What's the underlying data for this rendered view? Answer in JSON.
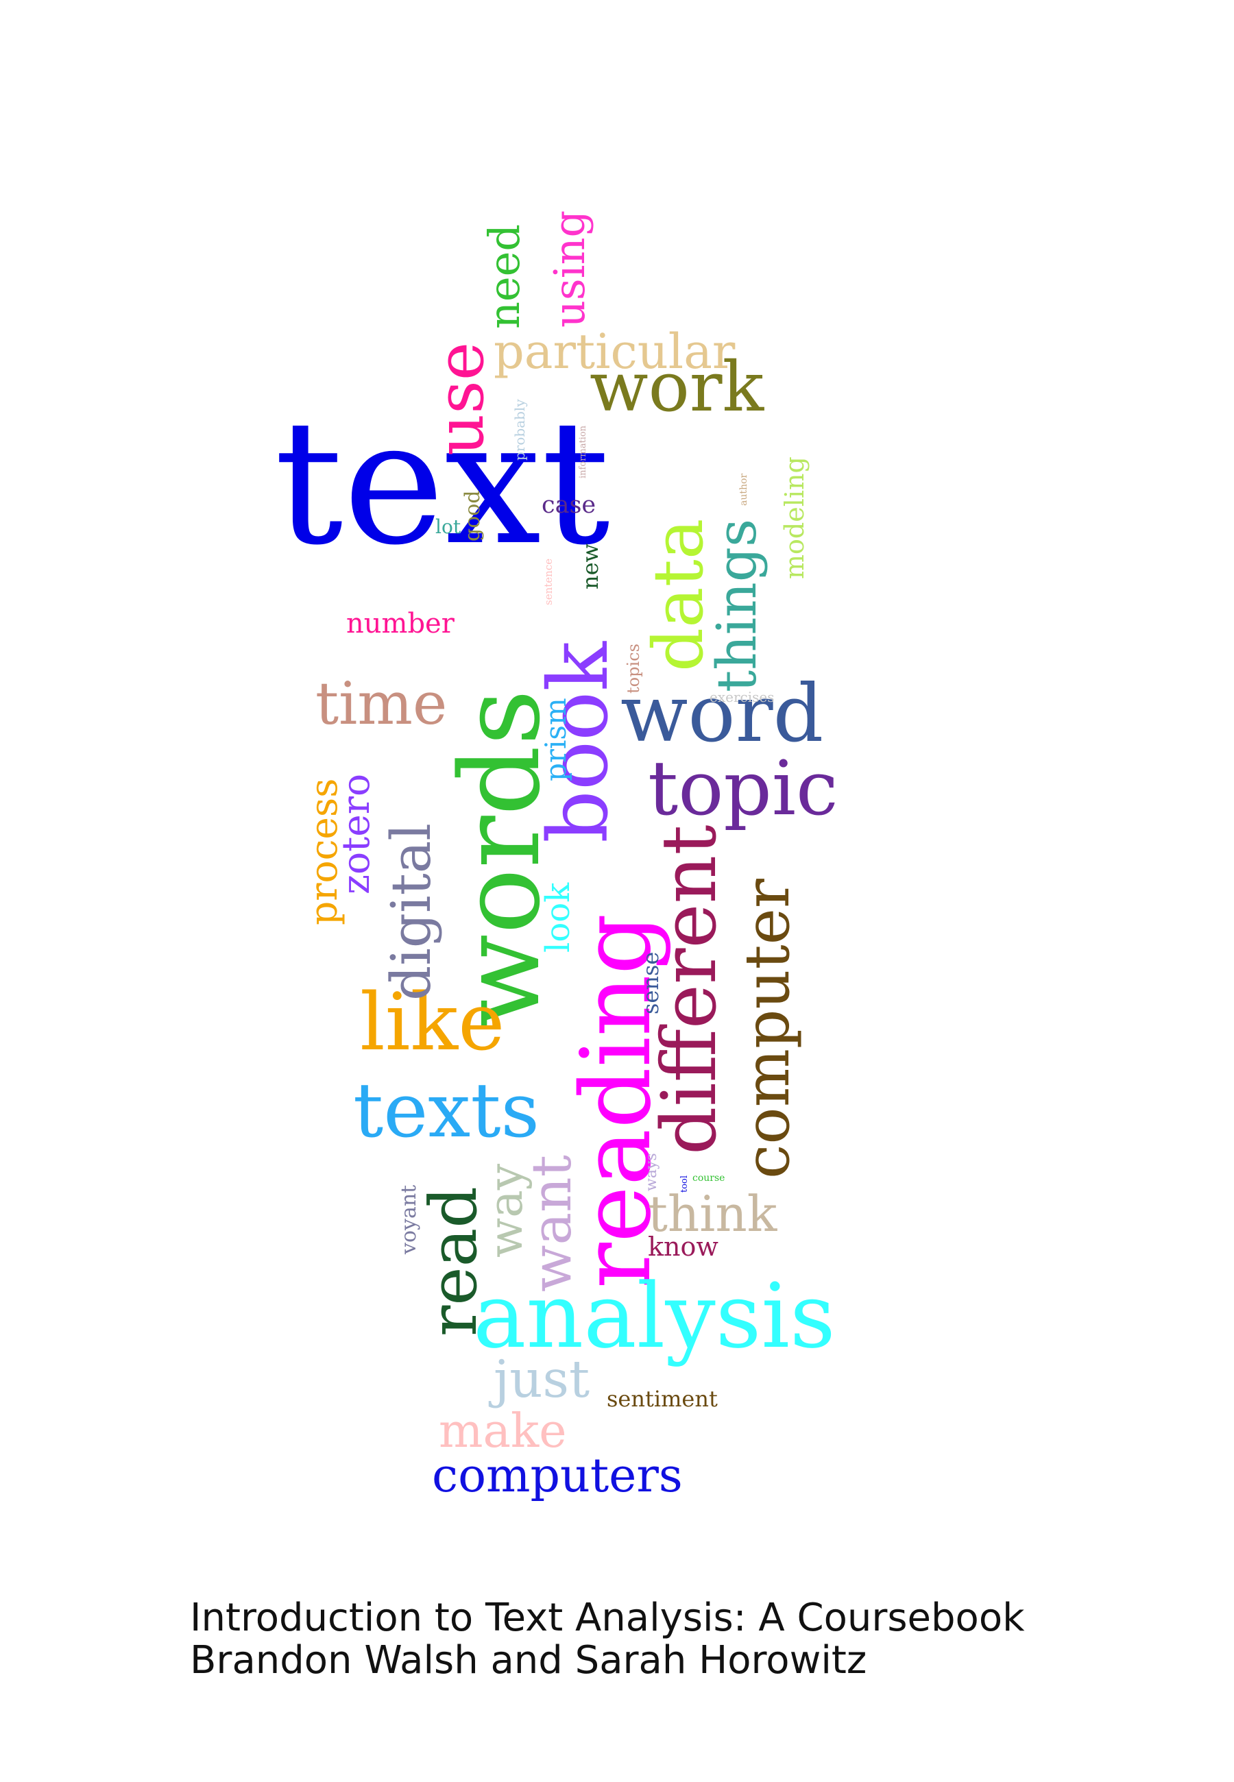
{
  "cover": {
    "title": "Introduction to Text Analysis: A Coursebook",
    "authors": "Brandon Walsh and Sarah Horowitz"
  },
  "cloud": {
    "words": [
      {
        "text": "text",
        "color": "#0000e8"
      },
      {
        "text": "words",
        "color": "#33c133"
      },
      {
        "text": "reading",
        "color": "#ff00ff"
      },
      {
        "text": "book",
        "color": "#8b3dff"
      },
      {
        "text": "analysis",
        "color": "#33ffff"
      },
      {
        "text": "data",
        "color": "#b5f533"
      },
      {
        "text": "use",
        "color": "#ff1493"
      },
      {
        "text": "work",
        "color": "#7a7a1e"
      },
      {
        "text": "word",
        "color": "#3a5a9a"
      },
      {
        "text": "topic",
        "color": "#6a2a9a"
      },
      {
        "text": "different",
        "color": "#9a1a5a"
      },
      {
        "text": "computer",
        "color": "#6a4a10"
      },
      {
        "text": "like",
        "color": "#f5a500"
      },
      {
        "text": "texts",
        "color": "#2aaaf5"
      },
      {
        "text": "digital",
        "color": "#7a7aa0"
      },
      {
        "text": "read",
        "color": "#1a5a2a"
      },
      {
        "text": "things",
        "color": "#3aa89a"
      },
      {
        "text": "particular",
        "color": "#e5c890"
      },
      {
        "text": "time",
        "color": "#c89080"
      },
      {
        "text": "need",
        "color": "#33c133"
      },
      {
        "text": "using",
        "color": "#ff33cc"
      },
      {
        "text": "want",
        "color": "#c8a8d8"
      },
      {
        "text": "way",
        "color": "#b8c8b0"
      },
      {
        "text": "think",
        "color": "#c8b8a0"
      },
      {
        "text": "just",
        "color": "#b8d0e0"
      },
      {
        "text": "make",
        "color": "#ffc0c0"
      },
      {
        "text": "computers",
        "color": "#1010e0"
      },
      {
        "text": "prism",
        "color": "#2ab0f5"
      },
      {
        "text": "look",
        "color": "#33ffff"
      },
      {
        "text": "zotero",
        "color": "#8a3dff"
      },
      {
        "text": "process",
        "color": "#f5a500"
      },
      {
        "text": "modeling",
        "color": "#b8e860"
      },
      {
        "text": "number",
        "color": "#ff1493"
      },
      {
        "text": "case",
        "color": "#5a2a8a"
      },
      {
        "text": "new",
        "color": "#1a5a2a"
      },
      {
        "text": "good",
        "color": "#8a8a40"
      },
      {
        "text": "lot",
        "color": "#3aa89a"
      },
      {
        "text": "sense",
        "color": "#3a5a9a"
      },
      {
        "text": "know",
        "color": "#9a1a5a"
      },
      {
        "text": "sentiment",
        "color": "#6a4a10"
      },
      {
        "text": "voyant",
        "color": "#7a7aa0"
      },
      {
        "text": "topics",
        "color": "#c89080"
      },
      {
        "text": "exercises",
        "color": "#c8c8c8"
      },
      {
        "text": "probably",
        "color": "#b8d0e0"
      },
      {
        "text": "information",
        "color": "#c8a8a8"
      },
      {
        "text": "author",
        "color": "#c8a880"
      },
      {
        "text": "sentence",
        "color": "#ffc0c0"
      },
      {
        "text": "ways",
        "color": "#b8a8d8"
      },
      {
        "text": "tool",
        "color": "#1010e0"
      },
      {
        "text": "course",
        "color": "#33c133"
      }
    ]
  }
}
